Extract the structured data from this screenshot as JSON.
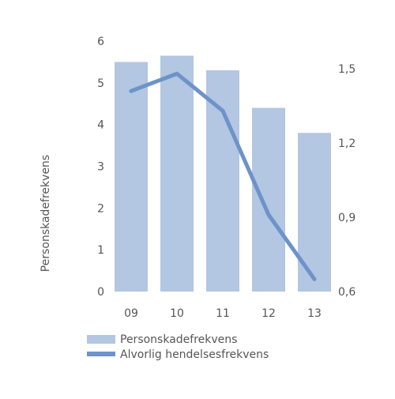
{
  "chart_data": {
    "type": "bar",
    "categories": [
      "09",
      "10",
      "11",
      "12",
      "13"
    ],
    "ylabel": "Personskadefrekvens",
    "y_left": {
      "min": 0,
      "max": 6,
      "ticks": [
        "0",
        "1",
        "2",
        "3",
        "4",
        "5",
        "6"
      ]
    },
    "y_right": {
      "min": 0.6,
      "max": 1.5,
      "ticks": [
        "0,6",
        "0,9",
        "1,2",
        "1,5"
      ]
    },
    "grid": false,
    "legend_position": "bottom-left",
    "series": [
      {
        "name": "Personskadefrekvens",
        "type": "bar",
        "axis": "left",
        "color": "#b3c6e2",
        "values": [
          5.5,
          5.65,
          5.3,
          4.4,
          3.8
        ]
      },
      {
        "name": "Alvorlig hendelsesfrekvens",
        "type": "line",
        "axis": "right",
        "color": "#6d93c9",
        "values": [
          1.41,
          1.48,
          1.33,
          0.91,
          0.65
        ]
      }
    ]
  }
}
